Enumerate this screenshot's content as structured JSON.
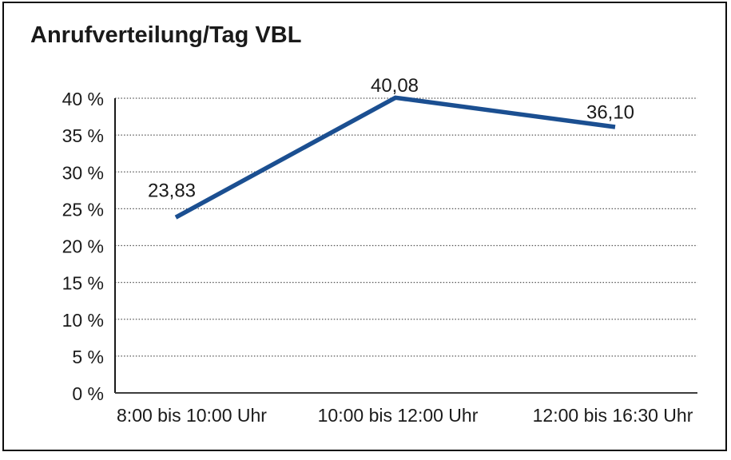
{
  "window": {
    "title": "Anrufverteilung/Tag VBL"
  },
  "chart_data": {
    "type": "line",
    "title": "Anrufverteilung/Tag VBL",
    "categories": [
      "8:00 bis 10:00 Uhr",
      "10:00 bis 12:00 Uhr",
      "12:00 bis 16:30 Uhr"
    ],
    "series": [
      {
        "name": "Anrufverteilung/Tag VBL",
        "values": [
          23.83,
          40.08,
          36.1
        ],
        "color": "#1B4F91"
      }
    ],
    "data_labels": [
      "23,83",
      "40,08",
      "36,10"
    ],
    "y_ticks": [
      0,
      5,
      10,
      15,
      20,
      25,
      30,
      35,
      40
    ],
    "y_tick_labels": [
      "0 %",
      "5 %",
      "10 %",
      "15 %",
      "20 %",
      "25 %",
      "30 %",
      "35 %",
      "40 %"
    ],
    "ylim": [
      0,
      40
    ],
    "xlabel": "",
    "ylabel": "",
    "grid": "horizontal-dotted",
    "legend": "none",
    "markers": "none",
    "colors": {
      "line": "#1B4F91",
      "text": "#1A1A1A",
      "grid": "#555555",
      "axis_y": "#1A1A1A",
      "axis_x": "#3D3D3D",
      "frame_border": "#0D0D0D",
      "background": "#FFFFFF"
    }
  }
}
